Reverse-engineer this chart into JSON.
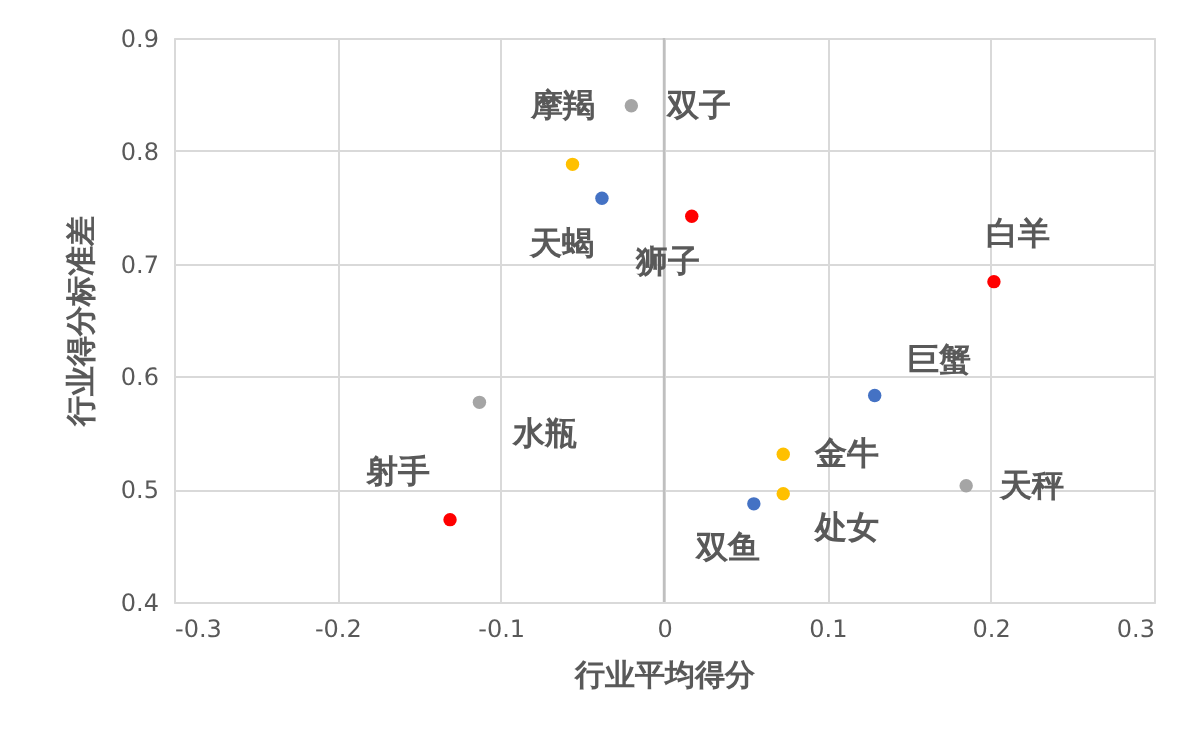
{
  "chart_data": {
    "type": "scatter",
    "xlabel": "行业平均得分",
    "ylabel": "行业得分标准差",
    "x": [
      -0.02,
      -0.056,
      -0.038,
      0.017,
      0.202,
      0.129,
      -0.113,
      0.073,
      0.073,
      0.185,
      0.055,
      -0.131
    ],
    "values": [
      0.84,
      0.788,
      0.758,
      0.742,
      0.684,
      0.583,
      0.577,
      0.531,
      0.496,
      0.503,
      0.487,
      0.473
    ],
    "colors": [
      "#a5a5a5",
      "#ffc000",
      "#4472c4",
      "#ff0000",
      "#ff0000",
      "#4472c4",
      "#a5a5a5",
      "#ffc000",
      "#ffc000",
      "#a5a5a5",
      "#4472c4",
      "#ff0000"
    ],
    "annotations": [
      {
        "text": "双子",
        "x": -0.02,
        "y": 0.84
      },
      {
        "text": "摩羯",
        "x": -0.056,
        "y": 0.788
      },
      {
        "text": "天蝎",
        "x": -0.038,
        "y": 0.758
      },
      {
        "text": "狮子",
        "x": 0.017,
        "y": 0.742
      },
      {
        "text": "白羊",
        "x": 0.202,
        "y": 0.684
      },
      {
        "text": "巨蟹",
        "x": 0.129,
        "y": 0.583
      },
      {
        "text": "水瓶",
        "x": -0.113,
        "y": 0.577
      },
      {
        "text": "金牛",
        "x": 0.073,
        "y": 0.531
      },
      {
        "text": "处女",
        "x": 0.073,
        "y": 0.496
      },
      {
        "text": "天秤",
        "x": 0.185,
        "y": 0.503
      },
      {
        "text": "双鱼",
        "x": 0.055,
        "y": 0.487
      },
      {
        "text": "射手",
        "x": -0.131,
        "y": 0.473
      }
    ],
    "xlim": [
      -0.3,
      0.3
    ],
    "xticks": [
      -0.3,
      -0.2,
      -0.1,
      0,
      0.1,
      0.2,
      0.3
    ],
    "ylim": [
      0.4,
      0.9
    ],
    "yticks": [
      0.4,
      0.5,
      0.6,
      0.7,
      0.8,
      0.9
    ],
    "ref_lines": [
      {
        "axis": "x",
        "value": 0,
        "color": "#bfbfbf"
      }
    ],
    "grid": true,
    "marker": "circle"
  }
}
